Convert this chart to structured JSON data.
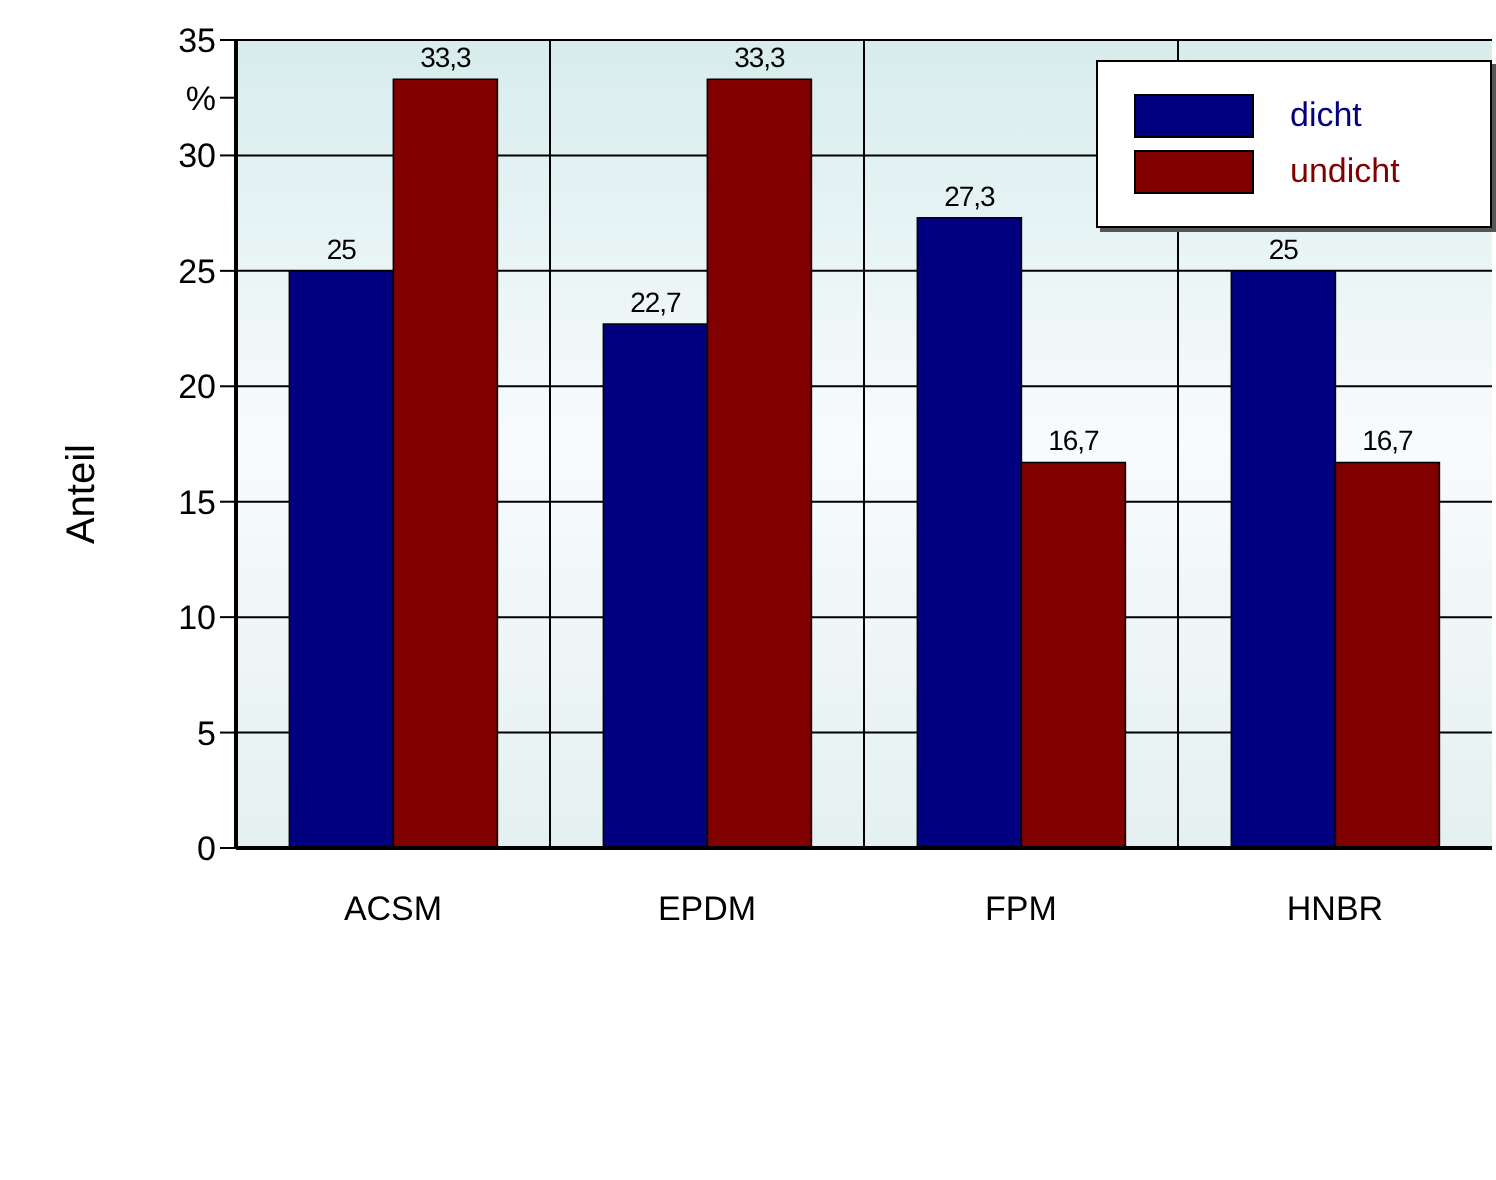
{
  "chart_data": {
    "type": "bar",
    "ylabel": "Anteil",
    "categories": [
      "ACSM",
      "EPDM",
      "FPM",
      "HNBR"
    ],
    "series": [
      {
        "name": "dicht",
        "color": "#000080",
        "values": [
          25,
          22.7,
          27.3,
          25
        ],
        "value_labels": [
          "25",
          "22,7",
          "27,3",
          "25"
        ]
      },
      {
        "name": "undicht",
        "color": "#800000",
        "values": [
          33.3,
          33.3,
          16.7,
          16.7
        ],
        "value_labels": [
          "33,3",
          "33,3",
          "16,7",
          "16,7"
        ]
      }
    ],
    "ylim": [
      0,
      35
    ],
    "yticks": [
      0,
      5,
      10,
      15,
      20,
      25,
      30,
      {
        "value": 32.5,
        "label": "%"
      },
      35
    ],
    "grid": true,
    "legend": "top right"
  }
}
